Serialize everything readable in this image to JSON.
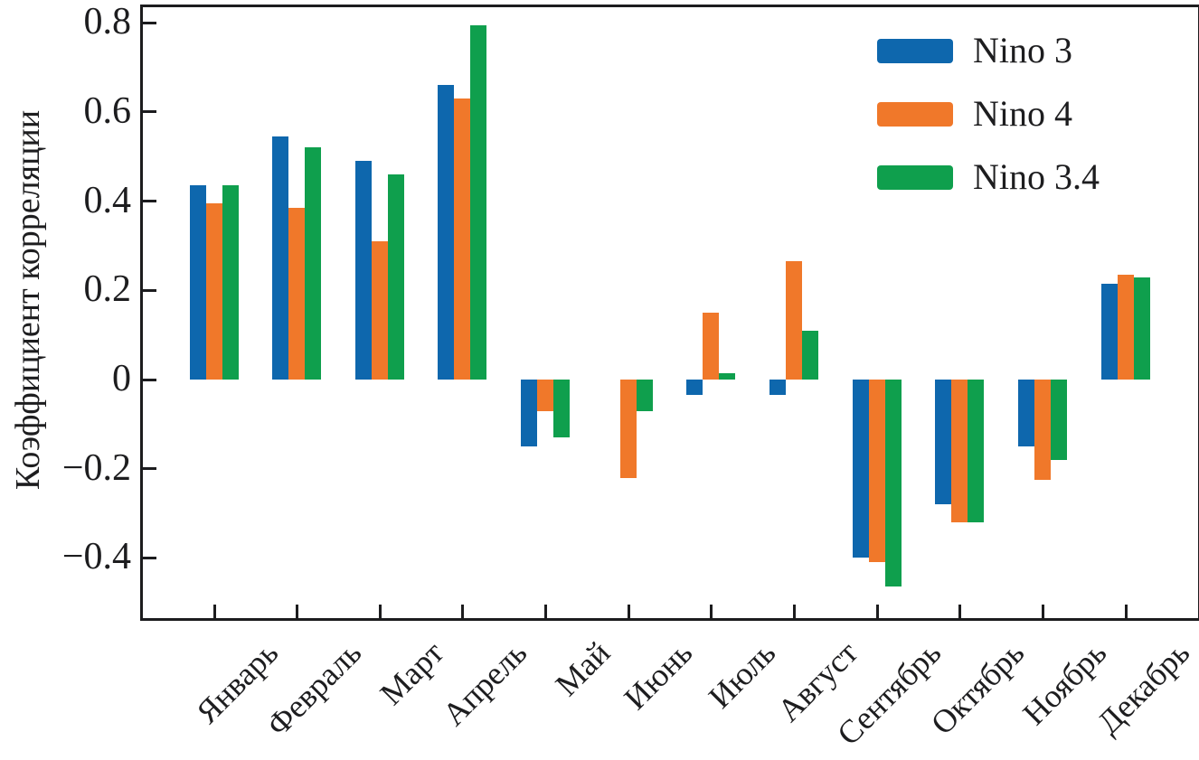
{
  "chart_data": {
    "type": "bar",
    "title": "",
    "ylabel": "Коэффициент корреляции",
    "xlabel": "",
    "categories": [
      "Январь",
      "Февраль",
      "Март",
      "Апрель",
      "Май",
      "Июнь",
      "Июль",
      "Август",
      "Сентябрь",
      "Октябрь",
      "Ноябрь",
      "Декабрь"
    ],
    "series": [
      {
        "name": "Nino 3",
        "color": "#0e67ad",
        "values": [
          0.435,
          0.545,
          0.49,
          0.66,
          -0.15,
          0.0,
          -0.035,
          -0.035,
          -0.4,
          -0.28,
          -0.15,
          0.215
        ]
      },
      {
        "name": "Nino 4",
        "color": "#f0782a",
        "values": [
          0.395,
          0.385,
          0.31,
          0.63,
          -0.07,
          -0.22,
          0.15,
          0.265,
          -0.41,
          -0.32,
          -0.225,
          0.235
        ]
      },
      {
        "name": "Nino 3.4",
        "color": "#0f9f4d",
        "values": [
          0.435,
          0.52,
          0.46,
          0.795,
          -0.13,
          -0.07,
          0.015,
          0.11,
          -0.465,
          -0.32,
          -0.18,
          0.23
        ]
      }
    ],
    "yticks": [
      0.8,
      0.6,
      0.4,
      0.2,
      0,
      -0.2,
      -0.4
    ],
    "ytick_labels": [
      "0.8",
      "0.6",
      "0.4",
      "0.2",
      "0",
      "−0.2",
      "−0.4"
    ],
    "ylim": [
      -0.535,
      0.835
    ],
    "grid": false,
    "legend_position": "top-right",
    "axis_color": "#1c1c1e"
  }
}
